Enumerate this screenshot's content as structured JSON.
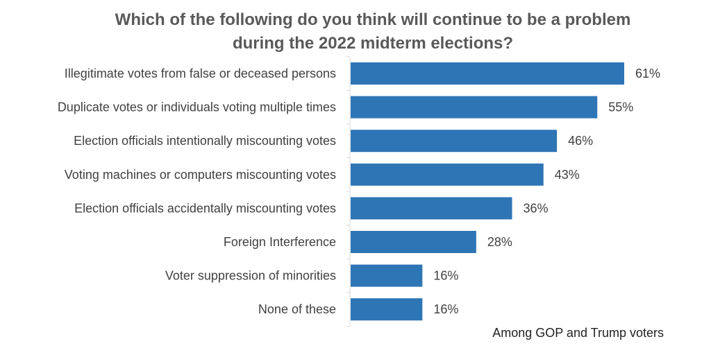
{
  "chart_data": {
    "type": "bar",
    "orientation": "horizontal",
    "title_lines": [
      "Which of the following do you think will continue to be a problem",
      "during the 2022 midterm elections?"
    ],
    "categories": [
      "Illegitimate votes from false or deceased persons",
      "Duplicate votes or individuals voting multiple times",
      "Election officials intentionally miscounting votes",
      "Voting machines or computers miscounting votes",
      "Election officials accidentally miscounting votes",
      "Foreign Interference",
      "Voter suppression of minorities",
      "None of these"
    ],
    "values": [
      61,
      55,
      46,
      43,
      36,
      28,
      16,
      16
    ],
    "value_labels": [
      "61%",
      "55%",
      "46%",
      "43%",
      "36%",
      "28%",
      "16%",
      "16%"
    ],
    "unit": "%",
    "xlim": [
      0,
      61
    ],
    "bar_color": "#2e75b6",
    "grid": false,
    "legend": "none",
    "annotation": "Among GOP and Trump voters"
  }
}
